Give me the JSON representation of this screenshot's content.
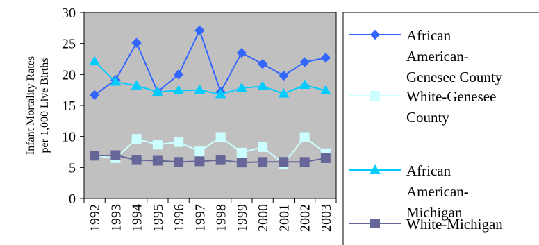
{
  "chart_data": {
    "type": "line",
    "title": "",
    "xlabel": "",
    "ylabel_lines": [
      "Infant Mortality Rates",
      "per 1,000 Live Births"
    ],
    "categories": [
      "1992",
      "1993",
      "1994",
      "1995",
      "1996",
      "1997",
      "1998",
      "1999",
      "2000",
      "2001",
      "2002",
      "2003"
    ],
    "ylim": [
      0,
      30
    ],
    "yticks": [
      "0",
      "5",
      "10",
      "15",
      "20",
      "25",
      "30"
    ],
    "grid": false,
    "background": "#c0c0c0",
    "legend_position": "right",
    "series": [
      {
        "name": "African American-Genesee County",
        "legend_lines": [
          "African",
          "American-",
          "Genesee County"
        ],
        "color": "#3366ff",
        "marker": "diamond",
        "values": [
          16.7,
          19.1,
          25.1,
          17.2,
          20.0,
          27.1,
          17.2,
          23.5,
          21.7,
          19.8,
          22.0,
          22.7
        ]
      },
      {
        "name": "White-Genesee County",
        "legend_lines": [
          "White-Genesee",
          "County"
        ],
        "color": "#ccffff",
        "marker": "square",
        "values": [
          6.9,
          6.5,
          9.6,
          8.7,
          9.1,
          7.6,
          9.9,
          7.4,
          8.3,
          5.6,
          9.9,
          7.3
        ]
      },
      {
        "name": "African American-Michigan",
        "legend_lines": [
          "African",
          "American-",
          "Michigan"
        ],
        "color": "#00ccff",
        "marker": "triangle",
        "values": [
          22.1,
          18.8,
          18.2,
          17.2,
          17.4,
          17.5,
          16.8,
          17.8,
          18.1,
          16.9,
          18.3,
          17.4
        ]
      },
      {
        "name": "White-Michigan",
        "legend_lines": [
          "White-Michigan"
        ],
        "color": "#666699",
        "marker": "square",
        "values": [
          6.9,
          7.0,
          6.2,
          6.1,
          5.9,
          6.0,
          6.2,
          5.8,
          5.9,
          5.9,
          5.9,
          6.5
        ]
      }
    ]
  }
}
